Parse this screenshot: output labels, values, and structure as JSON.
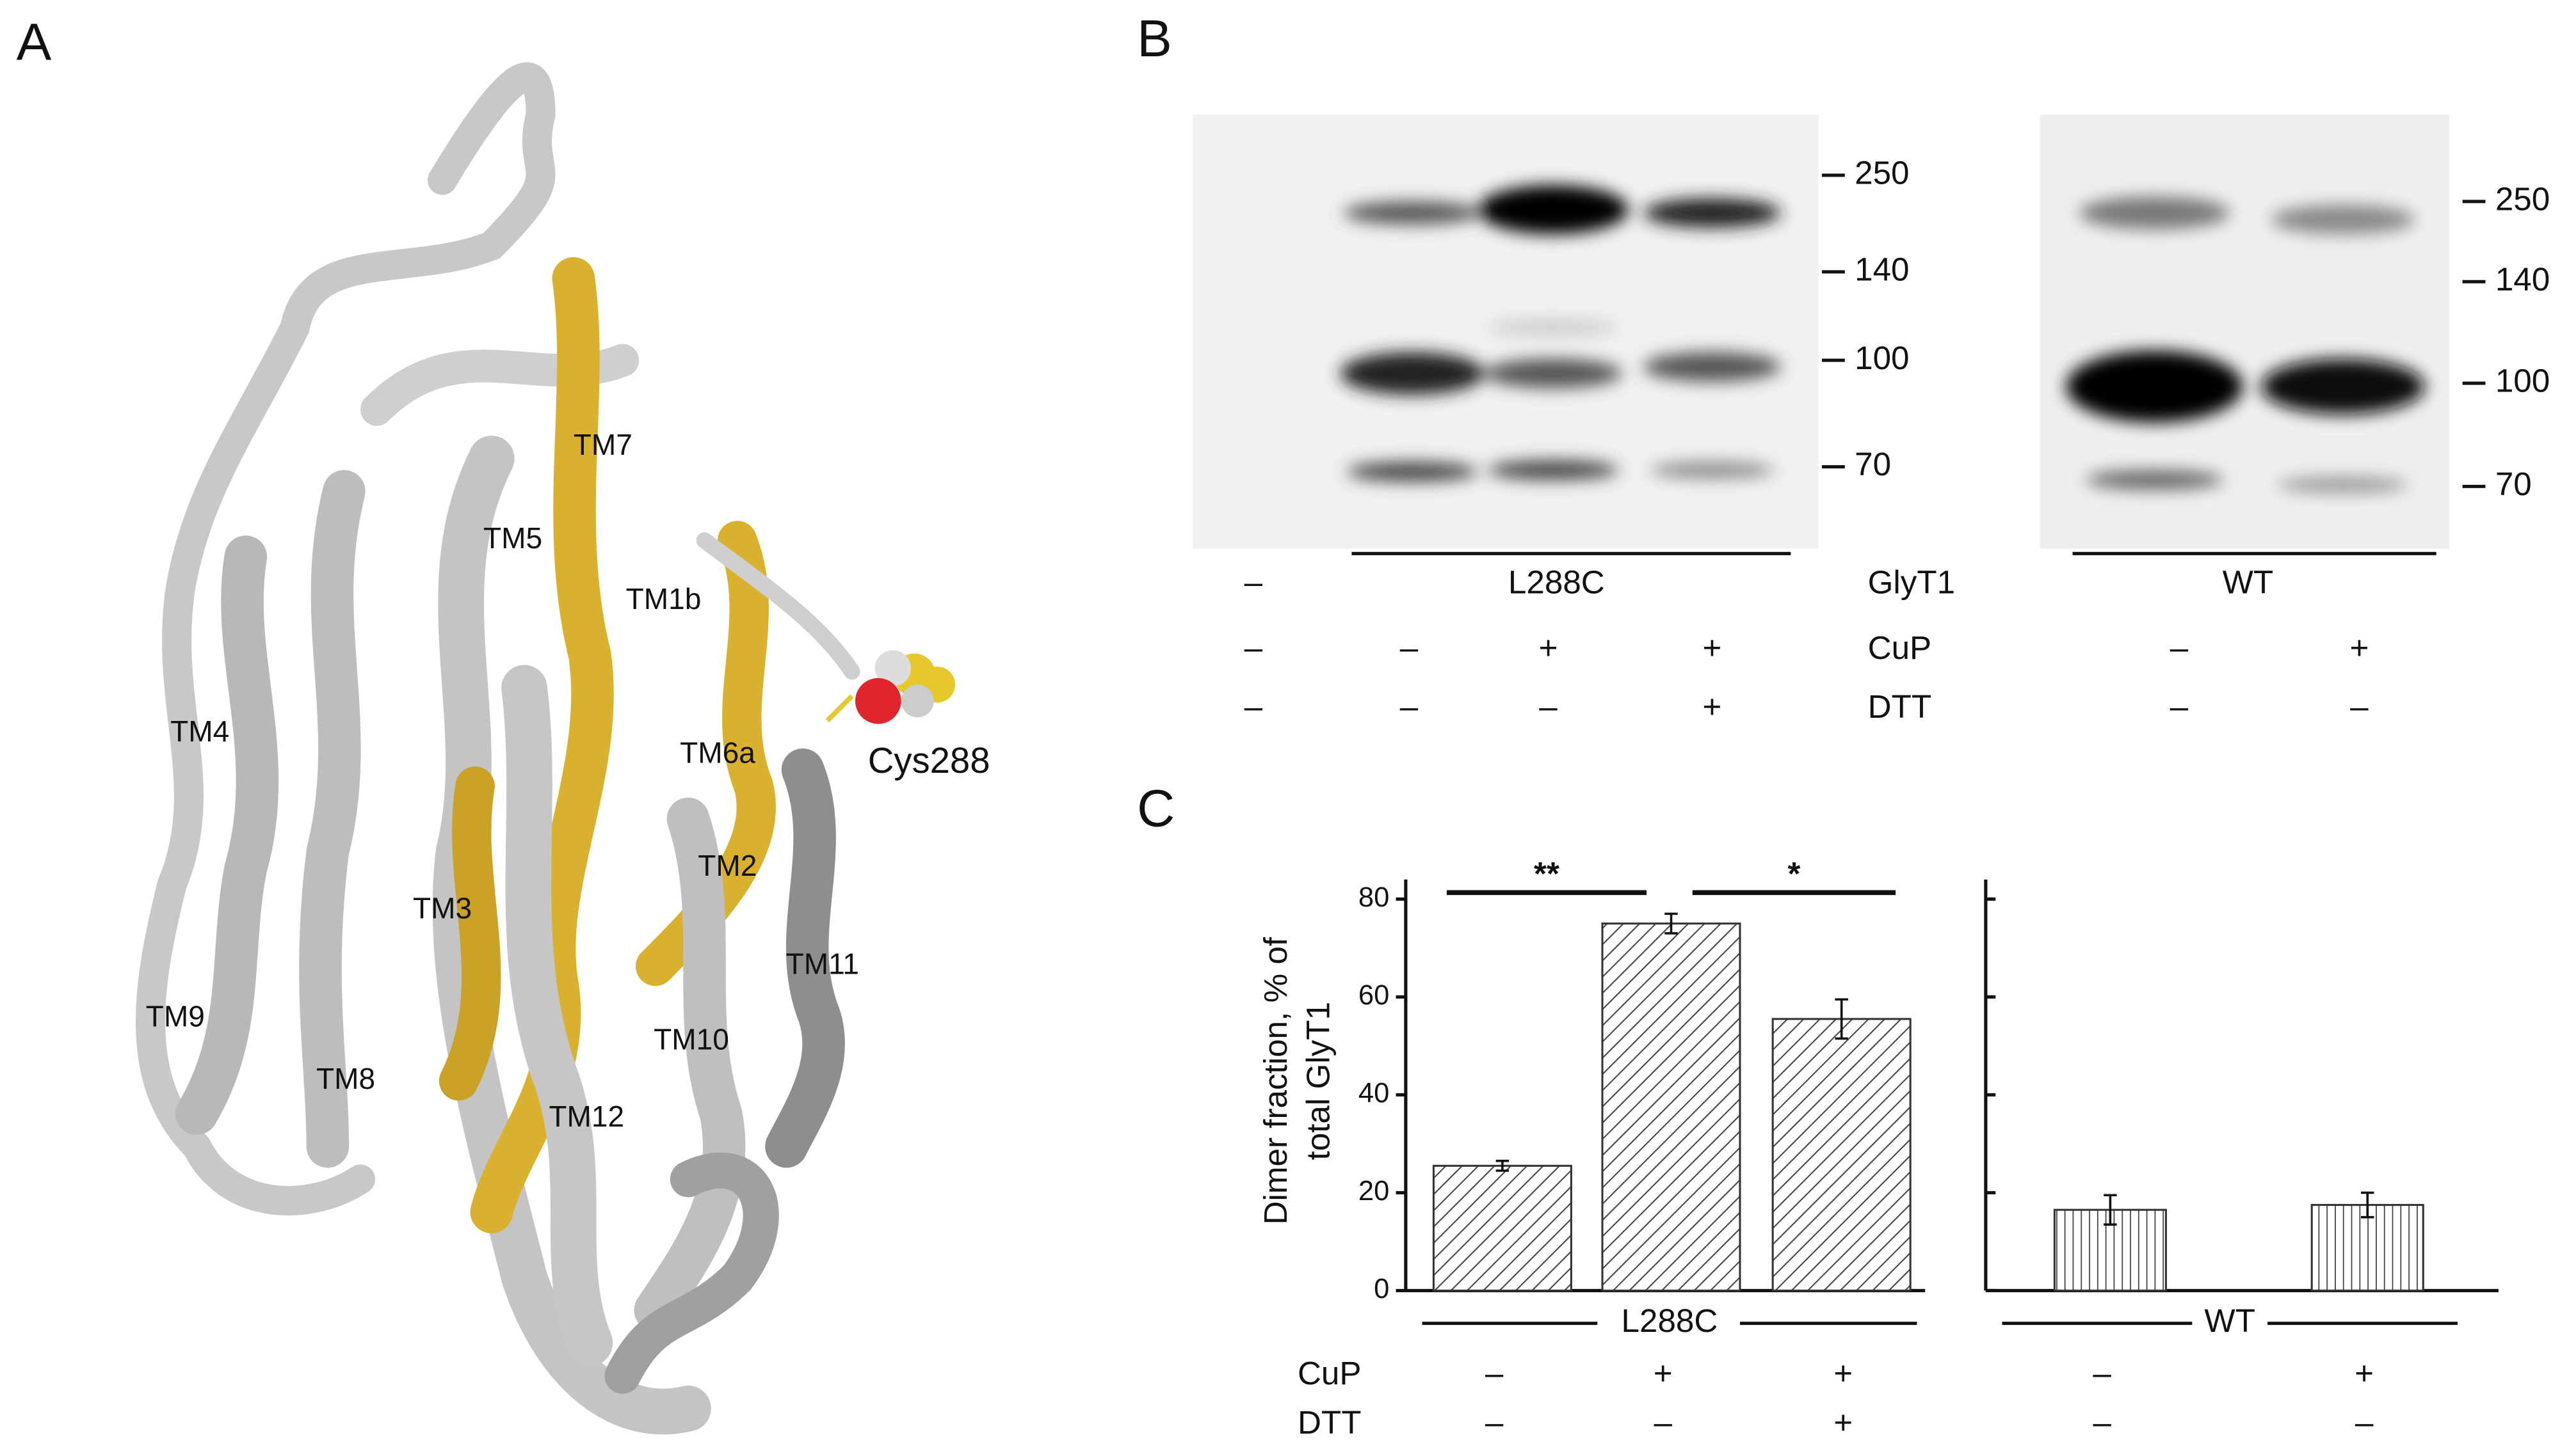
{
  "panel_a": {
    "label": "A",
    "helix_labels": [
      "TM7",
      "TM5",
      "TM1b",
      "TM4",
      "TM6a",
      "TM2",
      "TM3",
      "TM11",
      "TM9",
      "TM10",
      "TM8",
      "TM12"
    ],
    "residue": "Cys288"
  },
  "panel_b": {
    "label": "B",
    "blots": [
      {
        "group": "L288C",
        "markers": [
          "250",
          "140",
          "100",
          "70"
        ]
      },
      {
        "group": "WT",
        "markers": [
          "250",
          "140",
          "100",
          "70"
        ]
      }
    ],
    "rows": [
      {
        "name": "GlyT1",
        "signs": [
          "–"
        ]
      },
      {
        "name": "CuP",
        "signs": [
          "–",
          "–",
          "+",
          "+",
          "–",
          "+"
        ]
      },
      {
        "name": "DTT",
        "signs": [
          "–",
          "–",
          "–",
          "+",
          "–",
          "–"
        ]
      }
    ]
  },
  "panel_c": {
    "label": "C",
    "groups": [
      "L288C",
      "WT"
    ],
    "significance": [
      "**",
      "*"
    ],
    "rows": [
      {
        "name": "CuP",
        "signs": [
          "–",
          "+",
          "+",
          "–",
          "+"
        ]
      },
      {
        "name": "DTT",
        "signs": [
          "–",
          "–",
          "+",
          "–",
          "–"
        ]
      }
    ]
  },
  "chart_data": {
    "type": "bar",
    "y_label": [
      "Dimer fraction, % of",
      "total GlyT1"
    ],
    "values": [
      25.5,
      75,
      55.5,
      16.5,
      17.5
    ],
    "errors": [
      1,
      2,
      4,
      3,
      2.5
    ],
    "ylim": [
      0,
      84
    ],
    "yticks": [
      0,
      20,
      40,
      60,
      80
    ]
  }
}
